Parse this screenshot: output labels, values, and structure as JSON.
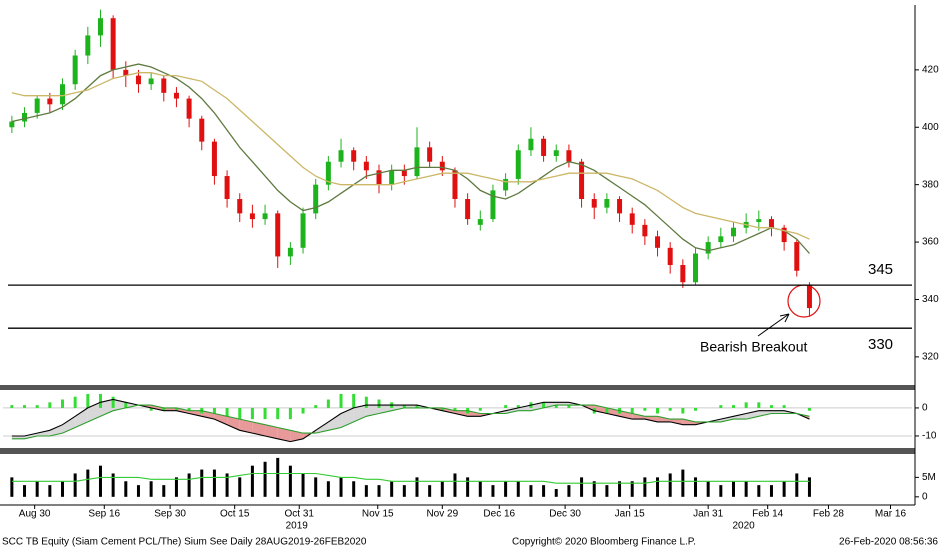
{
  "chart_data": [
    {
      "type": "candlestick",
      "up_color": "#1db31d",
      "down_color": "#e01010",
      "ohlc": [
        [
          400,
          404,
          398,
          402
        ],
        [
          402,
          407,
          400,
          405
        ],
        [
          405,
          411,
          403,
          410
        ],
        [
          410,
          412,
          405,
          408
        ],
        [
          408,
          417,
          406,
          415
        ],
        [
          415,
          427,
          413,
          425
        ],
        [
          425,
          435,
          422,
          432
        ],
        [
          432,
          441,
          428,
          438
        ],
        [
          438,
          439,
          417,
          420
        ],
        [
          420,
          423,
          414,
          418
        ],
        [
          418,
          420,
          412,
          415
        ],
        [
          415,
          419,
          413,
          417
        ],
        [
          417,
          418,
          409,
          412
        ],
        [
          412,
          414,
          407,
          410
        ],
        [
          410,
          411,
          400,
          403
        ],
        [
          403,
          404,
          392,
          395
        ],
        [
          395,
          396,
          380,
          383
        ],
        [
          383,
          385,
          372,
          375
        ],
        [
          375,
          377,
          367,
          370
        ],
        [
          370,
          373,
          365,
          368
        ],
        [
          368,
          373,
          366,
          370
        ],
        [
          370,
          371,
          351,
          355
        ],
        [
          355,
          360,
          352,
          358
        ],
        [
          358,
          372,
          356,
          370
        ],
        [
          370,
          382,
          368,
          380
        ],
        [
          380,
          390,
          378,
          388
        ],
        [
          388,
          396,
          386,
          392
        ],
        [
          392,
          393,
          385,
          388
        ],
        [
          388,
          390,
          382,
          385
        ],
        [
          385,
          387,
          377,
          380
        ],
        [
          380,
          387,
          378,
          385
        ],
        [
          385,
          387,
          380,
          383
        ],
        [
          383,
          400,
          382,
          393
        ],
        [
          393,
          395,
          386,
          388
        ],
        [
          388,
          390,
          383,
          385
        ],
        [
          385,
          386,
          372,
          375
        ],
        [
          375,
          377,
          366,
          368
        ],
        [
          366,
          371,
          364,
          368
        ],
        [
          368,
          380,
          367,
          378
        ],
        [
          378,
          384,
          376,
          382
        ],
        [
          382,
          394,
          380,
          392
        ],
        [
          392,
          400,
          390,
          396
        ],
        [
          396,
          397,
          388,
          390
        ],
        [
          390,
          394,
          388,
          392
        ],
        [
          392,
          394,
          386,
          388
        ],
        [
          388,
          389,
          372,
          375
        ],
        [
          375,
          377,
          368,
          372
        ],
        [
          372,
          377,
          370,
          375
        ],
        [
          375,
          376,
          367,
          370
        ],
        [
          370,
          372,
          363,
          366
        ],
        [
          366,
          368,
          359,
          362
        ],
        [
          362,
          364,
          355,
          358
        ],
        [
          358,
          360,
          349,
          352
        ],
        [
          352,
          354,
          344,
          346
        ],
        [
          346,
          358,
          345,
          356
        ],
        [
          356,
          362,
          354,
          360
        ],
        [
          360,
          365,
          358,
          362
        ],
        [
          362,
          367,
          360,
          365
        ],
        [
          365,
          370,
          363,
          367
        ],
        [
          367,
          371,
          364,
          368
        ],
        [
          368,
          369,
          362,
          365
        ],
        [
          365,
          366,
          357,
          360
        ],
        [
          360,
          361,
          348,
          350
        ],
        [
          345,
          346,
          334,
          337
        ]
      ],
      "series": [
        {
          "color": "#5f7a3f",
          "values": [
            402,
            403,
            404,
            405,
            407,
            410,
            414,
            418,
            420,
            421,
            422,
            421,
            419,
            417,
            414,
            410,
            405,
            399,
            393,
            388,
            383,
            378,
            374,
            371,
            372,
            374,
            377,
            380,
            383,
            384,
            385,
            385,
            386,
            386,
            386,
            385,
            382,
            378,
            376,
            375,
            377,
            380,
            383,
            386,
            388,
            387,
            385,
            382,
            379,
            376,
            373,
            369,
            365,
            361,
            358,
            357,
            358,
            359,
            361,
            363,
            365,
            364,
            361,
            356
          ]
        },
        {
          "color": "#cbb766",
          "values": [
            412,
            411,
            411,
            411,
            411,
            412,
            413,
            415,
            417,
            418,
            419,
            419,
            418,
            418,
            417,
            416,
            413,
            410,
            406,
            402,
            398,
            394,
            390,
            386,
            383,
            381,
            380,
            380,
            380,
            380,
            380,
            381,
            382,
            383,
            384,
            384,
            384,
            383,
            382,
            381,
            381,
            381,
            382,
            383,
            384,
            384,
            384,
            384,
            383,
            382,
            380,
            378,
            375,
            372,
            370,
            369,
            368,
            367,
            366,
            365,
            365,
            364,
            363,
            361
          ]
        }
      ],
      "levels": [
        345,
        330
      ],
      "annotation": "Bearish Breakout",
      "ylim": [
        310.2,
        442.6
      ],
      "yticks": [
        320,
        340,
        360,
        380,
        400,
        420
      ]
    },
    {
      "type": "macd",
      "series": [
        {
          "color": "#000000",
          "values": [
            -10,
            -10,
            -9,
            -8,
            -6,
            -3,
            0,
            2,
            3,
            2,
            1,
            0,
            -1,
            -1,
            -2,
            -3,
            -4,
            -6,
            -8,
            -9,
            -10,
            -11,
            -12,
            -11,
            -8,
            -5,
            -2,
            0,
            1,
            1,
            1,
            1,
            1,
            0,
            -1,
            -2,
            -3,
            -3,
            -2,
            -1,
            0,
            1,
            2,
            2,
            2,
            1,
            -1,
            -2,
            -3,
            -4,
            -4,
            -5,
            -5,
            -6,
            -6,
            -5,
            -4,
            -3,
            -2,
            -1,
            -1,
            -1,
            -2,
            -4
          ]
        },
        {
          "color": "#2e9e2e",
          "values": [
            -11,
            -11,
            -10,
            -10,
            -9,
            -7,
            -5,
            -3,
            -1,
            0,
            1,
            1,
            0,
            0,
            -1,
            -1,
            -2,
            -3,
            -4,
            -5,
            -6,
            -7,
            -8,
            -9,
            -9,
            -8,
            -7,
            -5,
            -3,
            -2,
            -1,
            0,
            0,
            0,
            0,
            -1,
            -1,
            -2,
            -2,
            -2,
            -1,
            -1,
            0,
            1,
            1,
            1,
            1,
            0,
            -1,
            -2,
            -3,
            -3,
            -4,
            -4,
            -5,
            -5,
            -5,
            -4,
            -4,
            -3,
            -2,
            -2,
            -2,
            -3
          ]
        }
      ],
      "histogram": {
        "color": "#33dd33",
        "values": [
          1,
          1,
          1,
          2,
          3,
          4,
          5,
          5,
          4,
          2,
          0,
          -1,
          -1,
          -1,
          -1,
          -2,
          -2,
          -3,
          -4,
          -4,
          -4,
          -4,
          -4,
          -2,
          1,
          3,
          5,
          5,
          4,
          3,
          2,
          1,
          1,
          0,
          -1,
          -1,
          -2,
          -1,
          0,
          1,
          1,
          2,
          2,
          1,
          1,
          0,
          -2,
          -2,
          -2,
          -2,
          -1,
          -2,
          -1,
          -2,
          -1,
          0,
          1,
          1,
          2,
          2,
          1,
          1,
          0,
          -1
        ]
      },
      "ylim": [
        -14.3,
        6.4
      ],
      "yticks": [
        0,
        -10
      ]
    },
    {
      "type": "bar",
      "color": "#000000",
      "values": [
        5,
        3,
        4,
        3,
        4,
        6,
        7,
        8,
        6,
        4,
        3,
        4,
        3,
        5,
        6,
        7,
        7,
        6,
        5,
        8,
        9,
        10,
        8,
        6,
        5,
        4,
        5,
        4,
        3,
        3,
        4,
        3,
        5,
        3,
        4,
        6,
        5,
        4,
        3,
        4,
        4,
        3,
        3,
        2,
        3,
        5,
        4,
        3,
        4,
        4,
        5,
        5,
        6,
        7,
        5,
        4,
        3,
        4,
        4,
        3,
        3,
        4,
        6,
        5
      ],
      "series": [
        {
          "color": "#33cc33",
          "values": [
            4,
            4,
            4,
            4,
            4,
            4,
            4.5,
            5,
            5,
            5,
            5,
            4.5,
            4.5,
            4.5,
            4.5,
            5,
            5,
            5,
            5.5,
            6,
            6,
            6,
            6,
            6,
            6,
            5.5,
            5,
            5,
            4.5,
            4.5,
            4,
            4,
            4,
            4,
            4,
            4,
            4,
            4,
            4,
            4,
            4,
            4,
            4,
            3.5,
            3.5,
            3.5,
            3.5,
            3.5,
            3.5,
            3.5,
            3.5,
            4,
            4,
            4,
            4,
            4,
            4,
            4,
            4,
            4,
            4,
            4,
            4,
            4
          ]
        }
      ],
      "ylim": [
        -2.1,
        11
      ],
      "yticks": [
        0,
        {
          "value": 5,
          "label": "5M"
        }
      ],
      "xlim": [
        -0.7,
        71.1
      ],
      "xticks": [
        {
          "value": 1.8,
          "label": "Aug 30"
        },
        {
          "value": 7.3,
          "label": "Sep 16"
        },
        {
          "value": 12.5,
          "label": "Sep 30"
        },
        {
          "value": 17.6,
          "label": "Oct 15"
        },
        {
          "value": 22.7,
          "label": "Oct 31"
        },
        {
          "value": 28.9,
          "label": "Nov 15"
        },
        {
          "value": 34,
          "label": "Nov 29"
        },
        {
          "value": 38.5,
          "label": "Dec 16"
        },
        {
          "value": 43.7,
          "label": "Dec 30"
        },
        {
          "value": 48.8,
          "label": "Jan 15"
        },
        {
          "value": 55,
          "label": "Jan 31"
        },
        {
          "value": 59.7,
          "label": "Feb 14"
        },
        {
          "value": 64.5,
          "label": "Feb 28"
        },
        {
          "value": 69.4,
          "label": "Mar 16"
        }
      ],
      "year_labels": [
        {
          "value": 22.5,
          "label": "2019"
        },
        {
          "value": 57.8,
          "label": "2020"
        }
      ]
    }
  ],
  "footer": {
    "left": "SCC TB Equity (Siam Cement PCL/The) Sium See  Daily 28AUG2019-26FEB2020",
    "center": "Copyright© 2020 Bloomberg Finance L.P.",
    "right": "26-Feb-2020 08:56:36"
  }
}
